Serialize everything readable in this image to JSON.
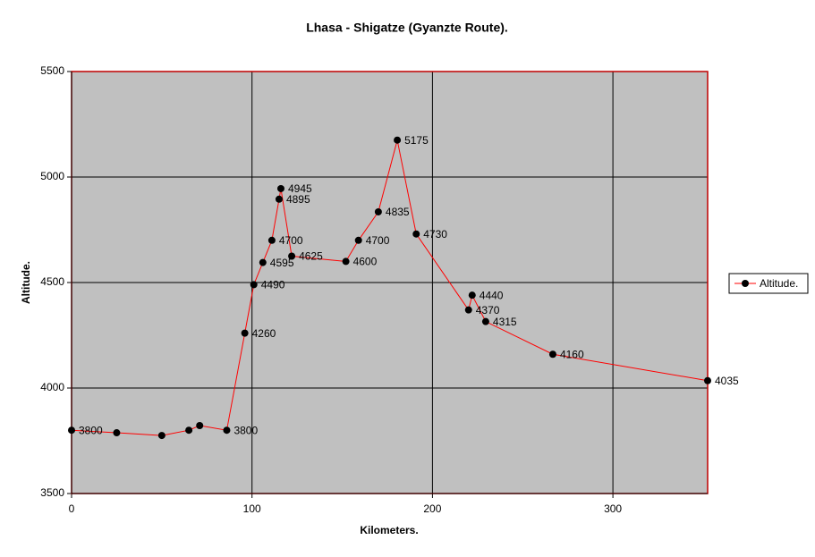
{
  "chart_data": {
    "type": "line",
    "title": "Lhasa - Shigatze (Gyanzte Route).",
    "x_label": "Kilometers.",
    "y_label": "Altitude.",
    "x": [
      0,
      25,
      50,
      65,
      71,
      86,
      96,
      101,
      106,
      111,
      115,
      116,
      122,
      152,
      159,
      170,
      180.5,
      191,
      220,
      222,
      229.5,
      266.7,
      352.5
    ],
    "series": [
      {
        "name": "Altitude.",
        "color": "#ff0000",
        "marker_color": "#000000",
        "values": [
          3800,
          3788,
          3775,
          3800,
          3822,
          3800,
          4260,
          4490,
          4595,
          4700,
          4895,
          4945,
          4625,
          4600,
          4700,
          4835,
          5175,
          4730,
          4370,
          4440,
          4315,
          4160,
          4035
        ],
        "value_labels": [
          "3800",
          null,
          null,
          null,
          null,
          "3800",
          "4260",
          "4490",
          "4595",
          "4700",
          "4895",
          "4945",
          "4625",
          "4600",
          "4700",
          "4835",
          "5175",
          "4730",
          "4370",
          "4440",
          "4315",
          "4160",
          "4035"
        ]
      }
    ],
    "xlim": [
      0,
      352.5
    ],
    "ylim": [
      3500,
      5500
    ],
    "xticks": [
      0,
      100,
      200,
      300
    ],
    "yticks": [
      3500,
      4000,
      4500,
      5000,
      5500
    ],
    "grid": true,
    "legend": "right",
    "plot_background": "#c0c0c0",
    "grid_color": "#000000"
  }
}
